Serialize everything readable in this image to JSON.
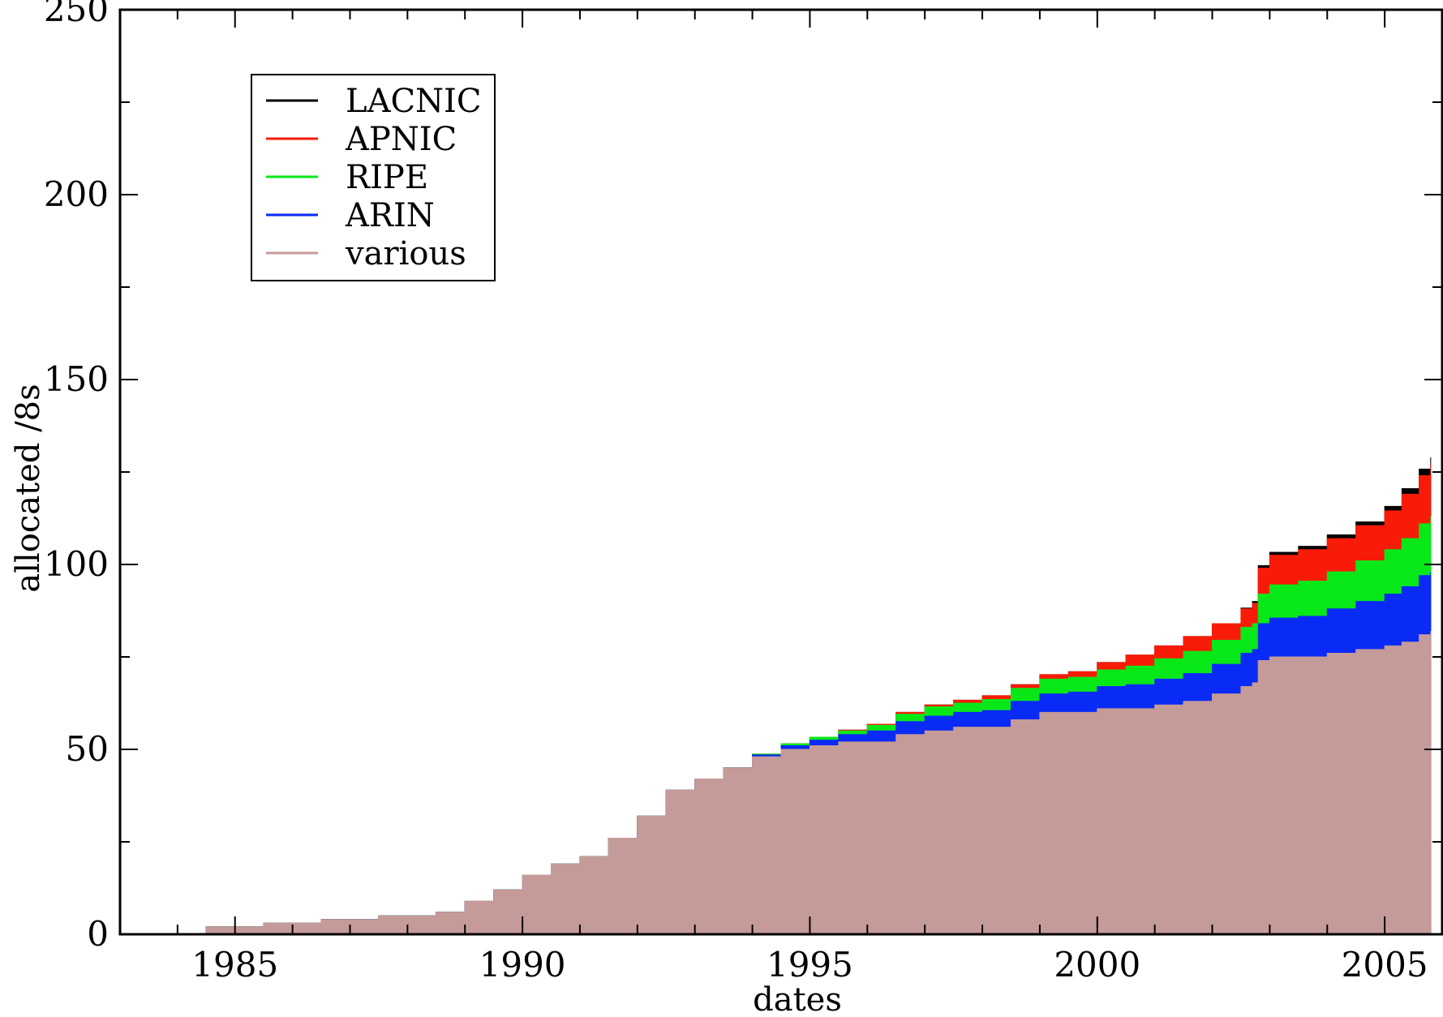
{
  "chart_data": {
    "type": "area",
    "stacked": true,
    "title": "",
    "xlabel": "dates",
    "ylabel": "allocated /8s",
    "xlim": [
      1983,
      2006
    ],
    "ylim": [
      0,
      250
    ],
    "x_ticks": [
      1985,
      1990,
      1995,
      2000,
      2005
    ],
    "y_ticks": [
      0,
      50,
      100,
      150,
      200,
      250
    ],
    "grid": false,
    "legend_position": "top-left",
    "x": [
      1983.5,
      1984.5,
      1985.5,
      1986.5,
      1987.5,
      1988.5,
      1989.0,
      1989.5,
      1990.0,
      1990.5,
      1991.0,
      1991.5,
      1992.0,
      1992.5,
      1993.0,
      1993.5,
      1994.0,
      1994.5,
      1995.0,
      1995.5,
      1996.0,
      1996.5,
      1997.0,
      1997.5,
      1998.0,
      1998.5,
      1999.0,
      1999.5,
      2000.0,
      2000.5,
      2001.0,
      2001.5,
      2002.0,
      2002.5,
      2002.7,
      2002.8,
      2003.0,
      2003.5,
      2004.0,
      2004.5,
      2005.0,
      2005.3,
      2005.6,
      2005.8
    ],
    "series": [
      {
        "name": "various",
        "color": "#c49b99",
        "values": [
          0,
          2,
          3,
          4,
          5,
          6,
          9,
          12,
          16,
          19,
          21,
          26,
          32,
          39,
          42,
          45,
          48,
          50,
          51,
          52,
          52,
          54,
          55,
          56,
          56,
          58,
          60,
          60,
          61,
          61,
          62,
          63,
          65,
          67,
          68,
          74,
          75,
          75,
          76,
          77,
          78,
          79,
          81,
          82
        ]
      },
      {
        "name": "ARIN",
        "color": "#0a2af5",
        "values": [
          0,
          0,
          0,
          0,
          0,
          0,
          0,
          0,
          0,
          0,
          0,
          0,
          0,
          0,
          0,
          0,
          0.5,
          1,
          1.5,
          2,
          3,
          3.5,
          4,
          4,
          4.5,
          5,
          5,
          5.5,
          6,
          6.5,
          7,
          7.5,
          8,
          9,
          9,
          10,
          10.5,
          11,
          12,
          13,
          14,
          15,
          16,
          16
        ]
      },
      {
        "name": "RIPE",
        "color": "#08e818",
        "values": [
          0,
          0,
          0,
          0,
          0,
          0,
          0,
          0,
          0,
          0,
          0,
          0,
          0,
          0,
          0,
          0,
          0.2,
          0.5,
          0.8,
          1,
          1.5,
          2,
          2.5,
          2.5,
          3,
          3.5,
          4,
          4,
          4.5,
          5,
          5.5,
          6,
          6.5,
          7,
          7,
          8,
          9,
          9.5,
          10,
          11,
          12,
          13,
          14,
          15
        ]
      },
      {
        "name": "APNIC",
        "color": "#f81c08",
        "values": [
          0,
          0,
          0,
          0,
          0,
          0,
          0,
          0,
          0,
          0,
          0,
          0,
          0,
          0,
          0,
          0,
          0,
          0,
          0,
          0.2,
          0.3,
          0.5,
          0.5,
          0.8,
          1,
          1,
          1.2,
          1.5,
          2,
          3,
          3.5,
          4,
          4.5,
          5,
          5.5,
          7,
          8,
          8.5,
          9,
          9.5,
          10.5,
          12,
          13,
          14
        ]
      },
      {
        "name": "LACNIC",
        "color": "#000000",
        "values": [
          0,
          0,
          0,
          0,
          0,
          0,
          0,
          0,
          0,
          0,
          0,
          0,
          0,
          0,
          0,
          0,
          0,
          0,
          0,
          0,
          0,
          0,
          0,
          0,
          0,
          0,
          0,
          0,
          0,
          0,
          0,
          0,
          0,
          0.2,
          0.5,
          0.7,
          0.8,
          0.9,
          1,
          1,
          1.2,
          1.5,
          1.8,
          2
        ]
      }
    ],
    "legend_order": [
      "LACNIC",
      "APNIC",
      "RIPE",
      "ARIN",
      "various"
    ]
  }
}
